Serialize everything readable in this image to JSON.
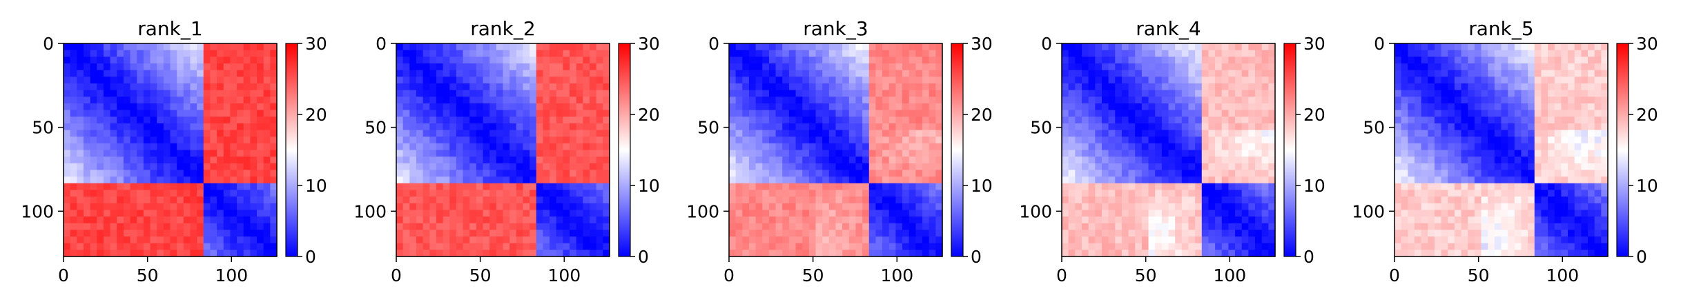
{
  "colors": {
    "low": "#0000ff",
    "mid": "#ffffff",
    "high": "#ff0000",
    "frame": "#000000"
  },
  "chart_data": [
    {
      "type": "heatmap",
      "title": "rank_1",
      "xlim": [
        0,
        127
      ],
      "ylim": [
        127,
        0
      ],
      "xticks": [
        0,
        50,
        100
      ],
      "yticks": [
        0,
        50,
        100
      ],
      "colorbar": {
        "min": 0,
        "max": 30,
        "ticks": [
          0,
          10,
          20,
          30
        ],
        "colormap": "bwr"
      },
      "pattern": {
        "domain_break": 84,
        "in_domain_max": 14,
        "cross_domain_value": 26,
        "lower_right_mix": 0
      }
    },
    {
      "type": "heatmap",
      "title": "rank_2",
      "xlim": [
        0,
        127
      ],
      "ylim": [
        127,
        0
      ],
      "xticks": [
        0,
        50,
        100
      ],
      "yticks": [
        0,
        50,
        100
      ],
      "colorbar": {
        "min": 0,
        "max": 30,
        "ticks": [
          0,
          10,
          20,
          30
        ],
        "colormap": "bwr"
      },
      "pattern": {
        "domain_break": 84,
        "in_domain_max": 14,
        "cross_domain_value": 25,
        "lower_right_mix": 0
      }
    },
    {
      "type": "heatmap",
      "title": "rank_3",
      "xlim": [
        0,
        127
      ],
      "ylim": [
        127,
        0
      ],
      "xticks": [
        0,
        50,
        100
      ],
      "yticks": [
        0,
        50,
        100
      ],
      "colorbar": {
        "min": 0,
        "max": 30,
        "ticks": [
          0,
          10,
          20,
          30
        ],
        "colormap": "bwr"
      },
      "pattern": {
        "domain_break": 84,
        "in_domain_max": 15,
        "cross_domain_value": 22,
        "lower_right_mix": 0.25
      }
    },
    {
      "type": "heatmap",
      "title": "rank_4",
      "xlim": [
        0,
        127
      ],
      "ylim": [
        127,
        0
      ],
      "xticks": [
        0,
        50,
        100
      ],
      "yticks": [
        0,
        50,
        100
      ],
      "colorbar": {
        "min": 0,
        "max": 30,
        "ticks": [
          0,
          10,
          20,
          30
        ],
        "colormap": "bwr"
      },
      "pattern": {
        "domain_break": 84,
        "in_domain_max": 15,
        "cross_domain_value": 19,
        "lower_right_mix": 0.6
      }
    },
    {
      "type": "heatmap",
      "title": "rank_5",
      "xlim": [
        0,
        127
      ],
      "ylim": [
        127,
        0
      ],
      "xticks": [
        0,
        50,
        100
      ],
      "yticks": [
        0,
        50,
        100
      ],
      "colorbar": {
        "min": 0,
        "max": 30,
        "ticks": [
          0,
          10,
          20,
          30
        ],
        "colormap": "bwr"
      },
      "pattern": {
        "domain_break": 84,
        "in_domain_max": 15,
        "cross_domain_value": 18,
        "lower_right_mix": 0.7
      }
    }
  ]
}
